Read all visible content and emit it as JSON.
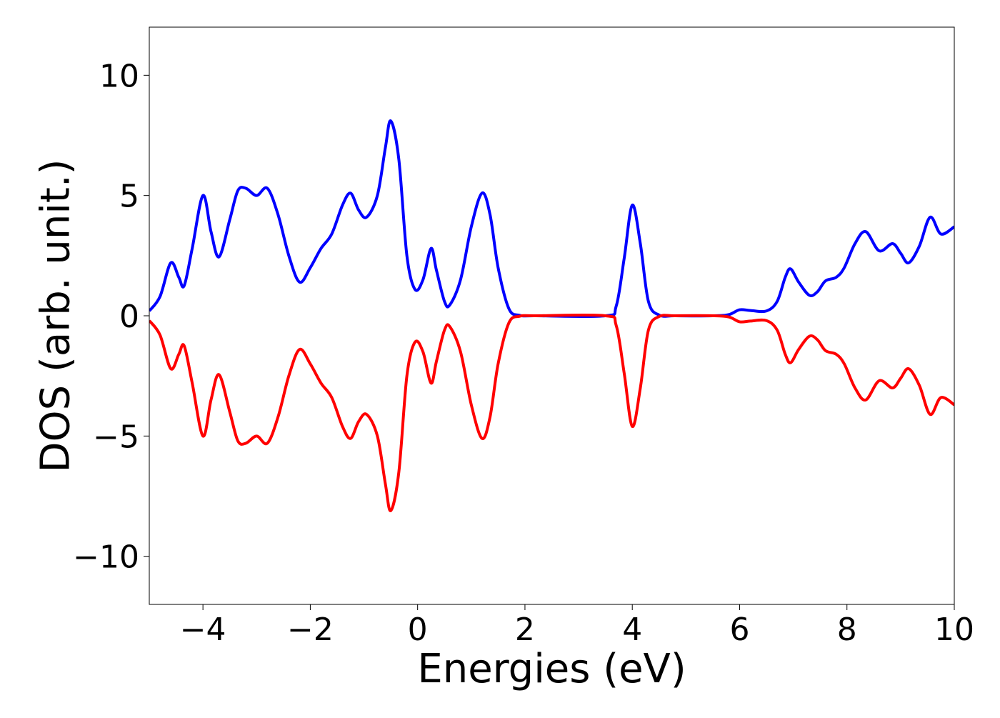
{
  "chart_data": {
    "type": "line",
    "title": "",
    "xlabel": "Energies (eV)",
    "ylabel": "DOS (arb. unit.)",
    "xlim": [
      -5,
      10
    ],
    "ylim": [
      -12,
      12
    ],
    "x_ticks": [
      -4,
      -2,
      0,
      2,
      4,
      6,
      8,
      10
    ],
    "x_tick_labels": [
      "−4",
      "−2",
      "0",
      "2",
      "4",
      "6",
      "8",
      "10"
    ],
    "y_ticks": [
      -10,
      -5,
      0,
      5,
      10
    ],
    "y_tick_labels": [
      "−10",
      "−5",
      "0",
      "5",
      "10"
    ],
    "grid": false,
    "legend": "none",
    "series": [
      {
        "color": "#0000ff",
        "points": [
          [
            -5.0,
            0.2
          ],
          [
            -4.8,
            0.8
          ],
          [
            -4.6,
            2.2
          ],
          [
            -4.45,
            1.6
          ],
          [
            -4.35,
            1.25
          ],
          [
            -4.2,
            2.8
          ],
          [
            -4.0,
            5.0
          ],
          [
            -3.85,
            3.5
          ],
          [
            -3.7,
            2.45
          ],
          [
            -3.5,
            4.0
          ],
          [
            -3.35,
            5.2
          ],
          [
            -3.2,
            5.3
          ],
          [
            -3.0,
            5.0
          ],
          [
            -2.8,
            5.3
          ],
          [
            -2.6,
            4.2
          ],
          [
            -2.4,
            2.5
          ],
          [
            -2.2,
            1.4
          ],
          [
            -2.0,
            2.0
          ],
          [
            -1.8,
            2.8
          ],
          [
            -1.6,
            3.4
          ],
          [
            -1.4,
            4.6
          ],
          [
            -1.25,
            5.1
          ],
          [
            -1.1,
            4.4
          ],
          [
            -0.95,
            4.1
          ],
          [
            -0.75,
            5.0
          ],
          [
            -0.6,
            7.0
          ],
          [
            -0.5,
            8.1
          ],
          [
            -0.35,
            6.5
          ],
          [
            -0.2,
            2.5
          ],
          [
            -0.05,
            1.1
          ],
          [
            0.1,
            1.5
          ],
          [
            0.25,
            2.8
          ],
          [
            0.35,
            1.9
          ],
          [
            0.5,
            0.6
          ],
          [
            0.6,
            0.45
          ],
          [
            0.8,
            1.5
          ],
          [
            1.0,
            3.7
          ],
          [
            1.2,
            5.1
          ],
          [
            1.35,
            4.2
          ],
          [
            1.5,
            2.0
          ],
          [
            1.7,
            0.3
          ],
          [
            1.9,
            0.02
          ],
          [
            2.2,
            0.0
          ],
          [
            3.5,
            0.0
          ],
          [
            3.7,
            0.4
          ],
          [
            3.85,
            2.4
          ],
          [
            4.0,
            4.6
          ],
          [
            4.15,
            3.0
          ],
          [
            4.3,
            0.6
          ],
          [
            4.5,
            0.03
          ],
          [
            4.8,
            0.0
          ],
          [
            5.5,
            0.0
          ],
          [
            5.8,
            0.05
          ],
          [
            6.0,
            0.25
          ],
          [
            6.2,
            0.22
          ],
          [
            6.5,
            0.2
          ],
          [
            6.7,
            0.6
          ],
          [
            6.85,
            1.6
          ],
          [
            6.95,
            1.95
          ],
          [
            7.1,
            1.4
          ],
          [
            7.3,
            0.85
          ],
          [
            7.45,
            1.0
          ],
          [
            7.6,
            1.45
          ],
          [
            7.8,
            1.6
          ],
          [
            7.95,
            2.0
          ],
          [
            8.15,
            3.0
          ],
          [
            8.35,
            3.5
          ],
          [
            8.6,
            2.7
          ],
          [
            8.85,
            3.0
          ],
          [
            9.0,
            2.6
          ],
          [
            9.15,
            2.2
          ],
          [
            9.35,
            2.9
          ],
          [
            9.55,
            4.1
          ],
          [
            9.75,
            3.4
          ],
          [
            10.0,
            3.7
          ]
        ]
      },
      {
        "color": "#ff0000",
        "points": [
          [
            -5.0,
            -0.2
          ],
          [
            -4.8,
            -0.8
          ],
          [
            -4.6,
            -2.2
          ],
          [
            -4.45,
            -1.6
          ],
          [
            -4.35,
            -1.25
          ],
          [
            -4.2,
            -2.8
          ],
          [
            -4.0,
            -5.0
          ],
          [
            -3.85,
            -3.5
          ],
          [
            -3.7,
            -2.45
          ],
          [
            -3.5,
            -4.0
          ],
          [
            -3.35,
            -5.2
          ],
          [
            -3.2,
            -5.3
          ],
          [
            -3.0,
            -5.0
          ],
          [
            -2.8,
            -5.3
          ],
          [
            -2.6,
            -4.2
          ],
          [
            -2.4,
            -2.5
          ],
          [
            -2.2,
            -1.4
          ],
          [
            -2.0,
            -2.0
          ],
          [
            -1.8,
            -2.8
          ],
          [
            -1.6,
            -3.4
          ],
          [
            -1.4,
            -4.6
          ],
          [
            -1.25,
            -5.1
          ],
          [
            -1.1,
            -4.4
          ],
          [
            -0.95,
            -4.1
          ],
          [
            -0.75,
            -5.0
          ],
          [
            -0.6,
            -7.0
          ],
          [
            -0.5,
            -8.1
          ],
          [
            -0.35,
            -6.5
          ],
          [
            -0.2,
            -2.5
          ],
          [
            -0.05,
            -1.1
          ],
          [
            0.1,
            -1.5
          ],
          [
            0.25,
            -2.8
          ],
          [
            0.35,
            -1.9
          ],
          [
            0.5,
            -0.6
          ],
          [
            0.6,
            -0.45
          ],
          [
            0.8,
            -1.5
          ],
          [
            1.0,
            -3.7
          ],
          [
            1.2,
            -5.1
          ],
          [
            1.35,
            -4.2
          ],
          [
            1.5,
            -2.0
          ],
          [
            1.7,
            -0.3
          ],
          [
            1.9,
            -0.02
          ],
          [
            2.2,
            0.0
          ],
          [
            3.5,
            0.0
          ],
          [
            3.7,
            -0.4
          ],
          [
            3.85,
            -2.4
          ],
          [
            4.0,
            -4.6
          ],
          [
            4.15,
            -3.0
          ],
          [
            4.3,
            -0.6
          ],
          [
            4.5,
            -0.03
          ],
          [
            4.8,
            0.0
          ],
          [
            5.5,
            0.0
          ],
          [
            5.8,
            -0.05
          ],
          [
            6.0,
            -0.25
          ],
          [
            6.2,
            -0.22
          ],
          [
            6.5,
            -0.2
          ],
          [
            6.7,
            -0.6
          ],
          [
            6.85,
            -1.6
          ],
          [
            6.95,
            -1.95
          ],
          [
            7.1,
            -1.4
          ],
          [
            7.3,
            -0.85
          ],
          [
            7.45,
            -1.0
          ],
          [
            7.6,
            -1.45
          ],
          [
            7.8,
            -1.6
          ],
          [
            7.95,
            -2.0
          ],
          [
            8.15,
            -3.0
          ],
          [
            8.35,
            -3.5
          ],
          [
            8.6,
            -2.7
          ],
          [
            8.85,
            -3.0
          ],
          [
            9.0,
            -2.6
          ],
          [
            9.15,
            -2.2
          ],
          [
            9.35,
            -2.9
          ],
          [
            9.55,
            -4.1
          ],
          [
            9.75,
            -3.4
          ],
          [
            10.0,
            -3.7
          ]
        ]
      }
    ]
  }
}
